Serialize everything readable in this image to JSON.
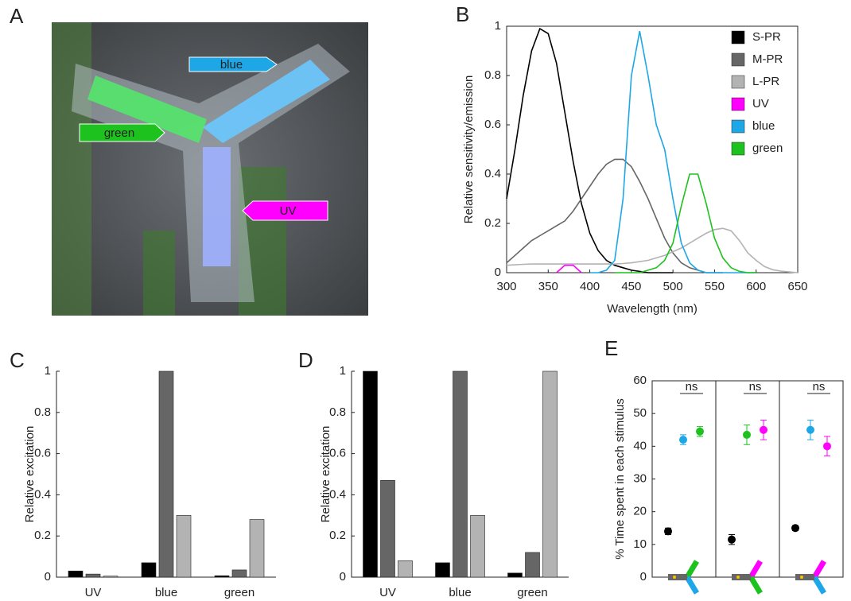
{
  "photo": {
    "panel_label": "A",
    "arrows": [
      "blue",
      "green",
      "UV"
    ]
  },
  "chart_data": [
    {
      "type": "line",
      "panel_label": "B",
      "xlabel": "Wavelength (nm)",
      "ylabel": "Relative sensitivity/emission",
      "xlim": [
        300,
        650
      ],
      "ylim": [
        0,
        1
      ],
      "xticks": [
        300,
        350,
        400,
        450,
        500,
        550,
        600,
        650
      ],
      "yticks": [
        0,
        0.2,
        0.4,
        0.6,
        0.8,
        1
      ],
      "legend": "upper right",
      "x": [
        300,
        310,
        320,
        330,
        340,
        350,
        360,
        370,
        380,
        390,
        400,
        410,
        420,
        430,
        440,
        450,
        460,
        470,
        480,
        490,
        500,
        510,
        520,
        530,
        540,
        550,
        560,
        570,
        580,
        590,
        600,
        610,
        620,
        630,
        640,
        650
      ],
      "series": [
        {
          "name": "S-PR",
          "color": "#000000",
          "values": [
            0.3,
            0.5,
            0.72,
            0.9,
            0.99,
            0.97,
            0.85,
            0.65,
            0.45,
            0.28,
            0.16,
            0.09,
            0.05,
            0.03,
            0.02,
            0.01,
            0.005,
            0,
            0,
            0,
            0,
            null,
            null,
            null,
            null,
            null,
            null,
            null,
            null,
            null,
            null,
            null,
            null,
            null,
            null,
            null
          ]
        },
        {
          "name": "M-PR",
          "color": "#666666",
          "values": [
            0.04,
            0.07,
            0.1,
            0.13,
            0.15,
            0.17,
            0.19,
            0.21,
            0.25,
            0.3,
            0.35,
            0.4,
            0.44,
            0.46,
            0.46,
            0.43,
            0.37,
            0.3,
            0.22,
            0.14,
            0.08,
            0.04,
            0.02,
            0.01,
            0,
            0,
            0,
            null,
            null,
            null,
            null,
            null,
            null,
            null,
            null,
            null
          ]
        },
        {
          "name": "L-PR",
          "color": "#b3b3b3",
          "values": [
            0.03,
            0.032,
            0.034,
            0.035,
            0.035,
            0.035,
            0.035,
            0.035,
            0.035,
            0.035,
            0.035,
            0.035,
            0.035,
            0.035,
            0.037,
            0.04,
            0.045,
            0.05,
            0.06,
            0.07,
            0.085,
            0.1,
            0.12,
            0.14,
            0.16,
            0.175,
            0.18,
            0.17,
            0.13,
            0.08,
            0.05,
            0.025,
            0.012,
            0.006,
            0.003,
            0
          ]
        },
        {
          "name": "UV",
          "color": "#ff00ff",
          "values": [
            null,
            null,
            null,
            null,
            null,
            null,
            0,
            0.03,
            0.03,
            0,
            null,
            null,
            null,
            null,
            null,
            null,
            null,
            null,
            null,
            null,
            null,
            null,
            null,
            null,
            null,
            null,
            null,
            null,
            null,
            null,
            null,
            null,
            null,
            null,
            null,
            null
          ]
        },
        {
          "name": "blue",
          "color": "#1ea7e6",
          "values": [
            null,
            null,
            null,
            null,
            null,
            null,
            null,
            null,
            null,
            null,
            0,
            0,
            0.01,
            0.05,
            0.3,
            0.8,
            0.98,
            0.8,
            0.6,
            0.5,
            0.3,
            0.12,
            0.04,
            0.01,
            0,
            0,
            0,
            0,
            0,
            0,
            0,
            null,
            null,
            null,
            null,
            null
          ]
        },
        {
          "name": "green",
          "color": "#1ec21e",
          "values": [
            null,
            null,
            null,
            null,
            null,
            null,
            null,
            null,
            null,
            null,
            null,
            null,
            null,
            0,
            0,
            0,
            0,
            0.01,
            0.02,
            0.05,
            0.12,
            0.27,
            0.4,
            0.4,
            0.28,
            0.14,
            0.06,
            0.02,
            0.005,
            0,
            0,
            null,
            null,
            null,
            null,
            null
          ]
        }
      ]
    },
    {
      "type": "bar",
      "panel_label": "C",
      "ylabel": "Relative excitation",
      "categories": [
        "UV",
        "blue",
        "green"
      ],
      "ylim": [
        0,
        1
      ],
      "yticks": [
        0,
        0.2,
        0.4,
        0.6,
        0.8,
        1
      ],
      "series": [
        {
          "color": "#000000",
          "values": [
            0.03,
            0.07,
            0.007
          ]
        },
        {
          "color": "#666666",
          "values": [
            0.015,
            1,
            0.035
          ]
        },
        {
          "color": "#b3b3b3",
          "values": [
            0.005,
            0.3,
            0.28
          ]
        }
      ]
    },
    {
      "type": "bar",
      "panel_label": "D",
      "ylabel": "Relative excitation",
      "categories": [
        "UV",
        "blue",
        "green"
      ],
      "ylim": [
        0,
        1
      ],
      "yticks": [
        0,
        0.2,
        0.4,
        0.6,
        0.8,
        1
      ],
      "series": [
        {
          "color": "#000000",
          "values": [
            1,
            0.07,
            0.02
          ]
        },
        {
          "color": "#666666",
          "values": [
            0.47,
            1,
            0.12
          ]
        },
        {
          "color": "#b3b3b3",
          "values": [
            0.08,
            0.3,
            1
          ]
        }
      ]
    },
    {
      "type": "errorbar",
      "panel_label": "E",
      "ylabel": "% Time spent in each stimulus",
      "ylim": [
        0,
        60
      ],
      "yticks": [
        0,
        10,
        20,
        30,
        40,
        50,
        60
      ],
      "groups": [
        {
          "annotation": "ns",
          "points": [
            {
              "color": "#000000",
              "value": 14,
              "error": 1
            },
            {
              "color": "#1ea7e6",
              "value": 42,
              "error": 1.5
            },
            {
              "color": "#1ec21e",
              "value": 44.5,
              "error": 1.5
            }
          ]
        },
        {
          "annotation": "ns",
          "points": [
            {
              "color": "#000000",
              "value": 11.5,
              "error": 1.5
            },
            {
              "color": "#1ec21e",
              "value": 43.5,
              "error": 3
            },
            {
              "color": "#ff00ff",
              "value": 45,
              "error": 3
            }
          ]
        },
        {
          "annotation": "ns",
          "points": [
            {
              "color": "#000000",
              "value": 15,
              "error": 0.8
            },
            {
              "color": "#1ea7e6",
              "value": 45,
              "error": 3
            },
            {
              "color": "#ff00ff",
              "value": 40,
              "error": 3
            }
          ]
        }
      ]
    }
  ]
}
